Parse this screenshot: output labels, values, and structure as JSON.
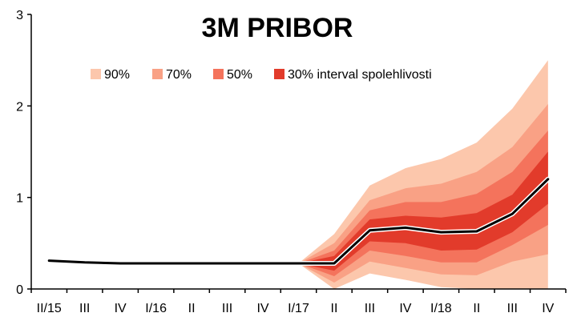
{
  "chart_data": {
    "type": "area",
    "title": "3M PRIBOR",
    "xlabel": "",
    "ylabel": "",
    "categories": [
      "II/15",
      "III",
      "IV",
      "I/16",
      "II",
      "III",
      "IV",
      "I/17",
      "II",
      "III",
      "IV",
      "I/18",
      "II",
      "III",
      "IV"
    ],
    "ylim": [
      0,
      3
    ],
    "yticks": [
      "0",
      "1",
      "2",
      "3"
    ],
    "grid": false,
    "legend_position": "top-center",
    "series": [
      {
        "name": "",
        "kind": "line",
        "color": "#000000",
        "values": [
          0.31,
          0.29,
          0.28,
          0.28,
          0.28,
          0.28,
          0.28,
          0.28,
          0.28,
          0.64,
          0.67,
          0.62,
          0.63,
          0.82,
          1.2
        ]
      }
    ],
    "fan_start_index": 7,
    "bands": [
      {
        "name": "90%",
        "color": "#fcc7ac",
        "lower": [
          0.28,
          0.0,
          0.17,
          0.1,
          0.02,
          0.0,
          0.0,
          0.0
        ],
        "upper": [
          0.28,
          0.6,
          1.13,
          1.32,
          1.42,
          1.6,
          1.97,
          2.5
        ]
      },
      {
        "name": "70%",
        "color": "#f9a185",
        "lower": [
          0.28,
          0.07,
          0.3,
          0.23,
          0.16,
          0.15,
          0.3,
          0.38
        ],
        "upper": [
          0.28,
          0.5,
          0.97,
          1.1,
          1.15,
          1.28,
          1.55,
          2.02
        ]
      },
      {
        "name": "50%",
        "color": "#f4735c",
        "lower": [
          0.28,
          0.14,
          0.42,
          0.36,
          0.29,
          0.29,
          0.48,
          0.7
        ],
        "upper": [
          0.28,
          0.42,
          0.86,
          0.95,
          0.95,
          1.04,
          1.28,
          1.73
        ]
      },
      {
        "name": "30% interval spolehlivosti",
        "color": "#e23b2b",
        "lower": [
          0.28,
          0.2,
          0.52,
          0.5,
          0.42,
          0.43,
          0.62,
          0.93
        ],
        "upper": [
          0.28,
          0.36,
          0.76,
          0.8,
          0.78,
          0.83,
          1.03,
          1.5
        ]
      }
    ]
  }
}
